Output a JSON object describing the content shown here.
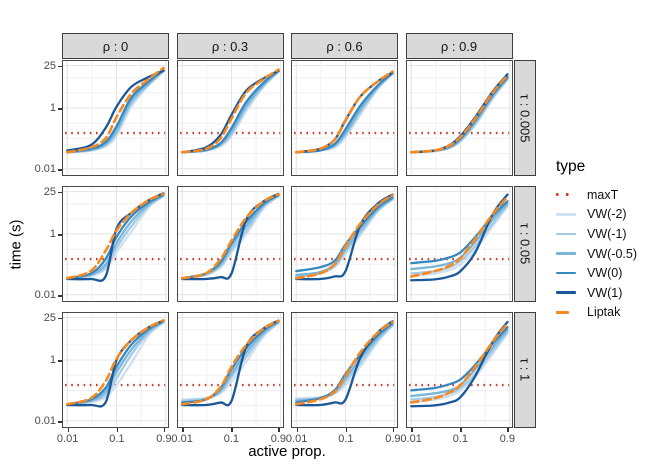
{
  "figure": {
    "title": ""
  },
  "facets": {
    "col_labels": [
      "ρ : 0",
      "ρ : 0.3",
      "ρ : 0.6",
      "ρ : 0.9"
    ],
    "row_labels": [
      "τ : 0.005",
      "τ : 0.05",
      "τ : 1"
    ]
  },
  "axes": {
    "x": {
      "label": "active prop.",
      "ticks": [
        "0.01",
        "0.1",
        "0.9"
      ],
      "tick_values": [
        0.01,
        0.1,
        0.9
      ],
      "scale": "log"
    },
    "y": {
      "label": "time (s)",
      "ticks": [
        "25",
        "1",
        "0.01"
      ],
      "tick_values": [
        25,
        1,
        0.01
      ],
      "scale": "log"
    }
  },
  "legend": {
    "title": "type",
    "items": [
      {
        "label": "maxT",
        "color": "#ce3b2b",
        "style": "dotted"
      },
      {
        "label": "VW(-2)",
        "color": "#cfe0f1",
        "style": "solid"
      },
      {
        "label": "VW(-1)",
        "color": "#a5cbe4",
        "style": "solid"
      },
      {
        "label": "VW(-0.5)",
        "color": "#79b5d9",
        "style": "solid"
      },
      {
        "label": "VW(0)",
        "color": "#3787c0",
        "style": "solid"
      },
      {
        "label": "VW(1)",
        "color": "#1b5899",
        "style": "solid"
      },
      {
        "label": "Liptak",
        "color": "#f8891f",
        "style": "dashed"
      }
    ]
  },
  "chart_data": {
    "type": "line",
    "title": "",
    "xlabel": "active prop.",
    "ylabel": "time (s)",
    "log_x": true,
    "log_y": true,
    "xlim": [
      0.0082,
      1.07
    ],
    "ylim": [
      0.0066,
      35.5
    ],
    "x_breaks": [
      0.01,
      0.1,
      0.9
    ],
    "y_breaks": [
      0.01,
      1,
      25
    ],
    "maxT": 0.15,
    "x": [
      0.01,
      0.03,
      0.06,
      0.1,
      0.2,
      0.45,
      0.9
    ],
    "series_order": [
      "VW(-2)",
      "VW(-1)",
      "VW(-0.5)",
      "VW(0)",
      "VW(1)",
      "Liptak"
    ],
    "panels": [
      {
        "rho": "0",
        "tau": "0.005",
        "series": {
          "VW(-2)": [
            0.035,
            0.04,
            0.055,
            0.12,
            1.1,
            5.5,
            16
          ],
          "VW(-1)": [
            0.035,
            0.04,
            0.06,
            0.15,
            1.4,
            6,
            16.5
          ],
          "VW(-0.5)": [
            0.035,
            0.042,
            0.065,
            0.18,
            1.7,
            6.5,
            17
          ],
          "VW(0)": [
            0.035,
            0.045,
            0.075,
            0.25,
            2.2,
            7.5,
            18
          ],
          "VW(1)": [
            0.04,
            0.06,
            0.22,
            1.1,
            5,
            10.5,
            17
          ],
          "Liptak": [
            0.035,
            0.05,
            0.1,
            0.5,
            3,
            9,
            21
          ]
        }
      },
      {
        "rho": "0.3",
        "tau": "0.005",
        "series": {
          "VW(-2)": [
            0.035,
            0.04,
            0.055,
            0.12,
            0.8,
            5,
            15.5
          ],
          "VW(-1)": [
            0.035,
            0.04,
            0.06,
            0.14,
            1,
            5.5,
            16
          ],
          "VW(-0.5)": [
            0.035,
            0.04,
            0.065,
            0.17,
            1.2,
            6,
            16.5
          ],
          "VW(0)": [
            0.035,
            0.042,
            0.07,
            0.22,
            1.6,
            7,
            17
          ],
          "VW(1)": [
            0.035,
            0.05,
            0.13,
            0.6,
            3.8,
            9.5,
            17
          ],
          "Liptak": [
            0.035,
            0.045,
            0.1,
            0.45,
            3.2,
            9,
            18.5
          ]
        }
      },
      {
        "rho": "0.6",
        "tau": "0.005",
        "series": {
          "VW(-2)": [
            0.035,
            0.04,
            0.05,
            0.11,
            0.6,
            4.2,
            13
          ],
          "VW(-1)": [
            0.035,
            0.04,
            0.055,
            0.13,
            0.75,
            4.6,
            13.5
          ],
          "VW(-0.5)": [
            0.035,
            0.04,
            0.06,
            0.15,
            0.9,
            5,
            14
          ],
          "VW(0)": [
            0.035,
            0.04,
            0.065,
            0.2,
            1.2,
            5.5,
            14.5
          ],
          "VW(1)": [
            0.035,
            0.045,
            0.09,
            0.4,
            2.4,
            7.5,
            15
          ],
          "Liptak": [
            0.035,
            0.045,
            0.09,
            0.38,
            2.4,
            7.5,
            16
          ]
        }
      },
      {
        "rho": "0.9",
        "tau": "0.005",
        "series": {
          "VW(-2)": [
            0.035,
            0.038,
            0.048,
            0.08,
            0.28,
            2,
            8.5
          ],
          "VW(-1)": [
            0.035,
            0.038,
            0.05,
            0.085,
            0.3,
            2.2,
            9
          ],
          "VW(-0.5)": [
            0.035,
            0.04,
            0.05,
            0.09,
            0.35,
            2.5,
            9.5
          ],
          "VW(0)": [
            0.035,
            0.04,
            0.055,
            0.1,
            0.4,
            2.8,
            10.5
          ],
          "VW(1)": [
            0.035,
            0.04,
            0.06,
            0.12,
            0.5,
            3.5,
            13
          ],
          "Liptak": [
            0.035,
            0.04,
            0.058,
            0.11,
            0.45,
            3.2,
            12
          ]
        }
      },
      {
        "rho": "0",
        "tau": "0.05",
        "series": {
          "VW(-2)": [
            0.035,
            0.04,
            0.07,
            0.25,
            1.2,
            7.5,
            17.5
          ],
          "VW(-1)": [
            0.035,
            0.045,
            0.08,
            0.35,
            1.8,
            8.5,
            18
          ],
          "VW(-0.5)": [
            0.035,
            0.045,
            0.1,
            0.5,
            2.6,
            9.5,
            19
          ],
          "VW(0)": [
            0.035,
            0.05,
            0.15,
            0.8,
            3.8,
            11,
            20
          ],
          "VW(1)": [
            0.033,
            0.033,
            0.04,
            1.5,
            5,
            13,
            22
          ],
          "Liptak": [
            0.035,
            0.06,
            0.28,
            1.3,
            5,
            13,
            21
          ]
        }
      },
      {
        "rho": "0.3",
        "tau": "0.05",
        "series": {
          "VW(-2)": [
            0.035,
            0.045,
            0.08,
            0.25,
            1,
            7,
            17.5
          ],
          "VW(-1)": [
            0.035,
            0.045,
            0.09,
            0.3,
            1.3,
            8,
            18
          ],
          "VW(-0.5)": [
            0.035,
            0.05,
            0.1,
            0.4,
            1.8,
            9,
            19
          ],
          "VW(0)": [
            0.035,
            0.05,
            0.12,
            0.5,
            2.5,
            10,
            19.5
          ],
          "VW(1)": [
            0.033,
            0.033,
            0.038,
            0.05,
            3,
            12,
            21
          ],
          "Liptak": [
            0.035,
            0.05,
            0.15,
            0.6,
            3.5,
            12,
            20.5
          ]
        }
      },
      {
        "rho": "0.6",
        "tau": "0.05",
        "series": {
          "VW(-2)": [
            0.04,
            0.05,
            0.08,
            0.22,
            0.9,
            5.5,
            13.5
          ],
          "VW(-1)": [
            0.04,
            0.05,
            0.09,
            0.27,
            1.1,
            6,
            14
          ],
          "VW(-0.5)": [
            0.045,
            0.055,
            0.1,
            0.32,
            1.4,
            6.5,
            15
          ],
          "VW(0)": [
            0.06,
            0.08,
            0.13,
            0.45,
            1.8,
            7.5,
            16
          ],
          "VW(1)": [
            0.033,
            0.033,
            0.04,
            0.06,
            2,
            10,
            20
          ],
          "Liptak": [
            0.035,
            0.05,
            0.1,
            0.4,
            2.2,
            9,
            19
          ]
        }
      },
      {
        "rho": "0.9",
        "tau": "0.05",
        "series": {
          "VW(-2)": [
            0.04,
            0.05,
            0.065,
            0.1,
            0.3,
            1.8,
            8
          ],
          "VW(-1)": [
            0.05,
            0.06,
            0.08,
            0.13,
            0.4,
            2.2,
            9
          ],
          "VW(-0.5)": [
            0.07,
            0.085,
            0.11,
            0.17,
            0.55,
            3,
            10
          ],
          "VW(0)": [
            0.11,
            0.13,
            0.17,
            0.25,
            0.8,
            4,
            12
          ],
          "VW(1)": [
            0.03,
            0.032,
            0.04,
            0.06,
            0.25,
            4.5,
            20
          ],
          "Liptak": [
            0.04,
            0.06,
            0.09,
            0.16,
            0.7,
            4.5,
            17
          ]
        }
      },
      {
        "rho": "0",
        "tau": "1",
        "series": {
          "VW(-2)": [
            0.035,
            0.04,
            0.06,
            0.15,
            0.8,
            6.5,
            17
          ],
          "VW(-1)": [
            0.035,
            0.045,
            0.07,
            0.25,
            1.5,
            8,
            18
          ],
          "VW(-0.5)": [
            0.035,
            0.045,
            0.09,
            0.4,
            2.2,
            9,
            18.5
          ],
          "VW(0)": [
            0.035,
            0.05,
            0.12,
            0.6,
            3.2,
            10.5,
            19.5
          ],
          "VW(1)": [
            0.033,
            0.033,
            0.04,
            1,
            4.5,
            12,
            20
          ],
          "Liptak": [
            0.035,
            0.055,
            0.2,
            1.1,
            4.5,
            12,
            20.5
          ]
        }
      },
      {
        "rho": "0.3",
        "tau": "1",
        "series": {
          "VW(-2)": [
            0.05,
            0.055,
            0.08,
            0.2,
            0.9,
            6,
            16.5
          ],
          "VW(-1)": [
            0.045,
            0.055,
            0.09,
            0.28,
            1.3,
            7,
            17
          ],
          "VW(-0.5)": [
            0.04,
            0.05,
            0.1,
            0.35,
            1.8,
            8,
            18
          ],
          "VW(0)": [
            0.04,
            0.05,
            0.12,
            0.5,
            2.5,
            9.5,
            19
          ],
          "VW(1)": [
            0.033,
            0.033,
            0.04,
            0.045,
            2.8,
            11,
            20
          ],
          "Liptak": [
            0.035,
            0.05,
            0.13,
            0.6,
            3.2,
            11,
            19.5
          ]
        }
      },
      {
        "rho": "0.6",
        "tau": "1",
        "series": {
          "VW(-2)": [
            0.055,
            0.06,
            0.08,
            0.15,
            0.6,
            4,
            13.5
          ],
          "VW(-1)": [
            0.05,
            0.055,
            0.08,
            0.2,
            0.8,
            4.5,
            14
          ],
          "VW(-0.5)": [
            0.045,
            0.055,
            0.09,
            0.25,
            1.1,
            5.5,
            15
          ],
          "VW(0)": [
            0.04,
            0.055,
            0.1,
            0.35,
            1.5,
            6.5,
            16.5
          ],
          "VW(1)": [
            0.033,
            0.033,
            0.04,
            0.05,
            1.2,
            8,
            19
          ],
          "Liptak": [
            0.035,
            0.05,
            0.09,
            0.3,
            1.8,
            8,
            18
          ]
        }
      },
      {
        "rho": "0.9",
        "tau": "1",
        "series": {
          "VW(-2)": [
            0.04,
            0.05,
            0.065,
            0.1,
            0.28,
            1.6,
            7.5
          ],
          "VW(-1)": [
            0.05,
            0.06,
            0.08,
            0.12,
            0.35,
            2,
            8.5
          ],
          "VW(-0.5)": [
            0.065,
            0.08,
            0.1,
            0.15,
            0.5,
            2.6,
            10
          ],
          "VW(0)": [
            0.1,
            0.12,
            0.16,
            0.23,
            0.7,
            3.5,
            12
          ],
          "VW(1)": [
            0.03,
            0.032,
            0.04,
            0.06,
            0.3,
            4,
            18
          ],
          "Liptak": [
            0.04,
            0.055,
            0.085,
            0.15,
            0.6,
            4,
            16
          ]
        }
      }
    ]
  },
  "style": {
    "strip_bg": "#d9d9d9",
    "panel_border": "#474747",
    "grid_major": "#e3e3e3",
    "grid_minor": "#f0f0f0",
    "tick_text": "#4a4a4a"
  }
}
